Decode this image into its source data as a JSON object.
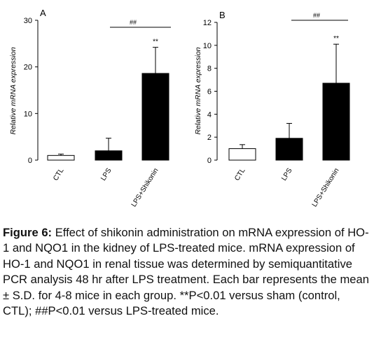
{
  "chart_data": [
    {
      "type": "bar",
      "panel_label": "A",
      "ylabel": "Relative mRNA expression",
      "ylim": [
        0,
        30
      ],
      "yticks": [
        "0",
        "10",
        "20",
        "30"
      ],
      "categories": [
        "CTL",
        "LPS",
        "LPS+Shikonin"
      ],
      "values": [
        1.0,
        2.0,
        18.6
      ],
      "errors": [
        0.3,
        2.7,
        5.6
      ],
      "bar_fills": [
        "#ffffff",
        "#000000",
        "#000000"
      ],
      "annotations": {
        "significance_vs_ctl": "**",
        "significance_vs_lps": "##"
      }
    },
    {
      "type": "bar",
      "panel_label": "B",
      "ylabel": "Relative mRNA expression",
      "ylim": [
        0,
        12
      ],
      "yticks": [
        "0",
        "2",
        "4",
        "6",
        "8",
        "10",
        "12"
      ],
      "categories": [
        "CTL",
        "LPS",
        "LPS+Shikonin"
      ],
      "values": [
        1.0,
        1.9,
        6.7
      ],
      "errors": [
        0.35,
        1.3,
        3.4
      ],
      "bar_fills": [
        "#ffffff",
        "#000000",
        "#000000"
      ],
      "annotations": {
        "significance_vs_ctl": "**",
        "significance_vs_lps": "##"
      }
    }
  ],
  "caption": {
    "label": "Figure 6:",
    "text": " Effect of shikonin administration on mRNA expression of HO-1 and NQO1 in the kidney of LPS-treated mice. mRNA expression of HO-1 and NQO1 in renal tissue was determined by semiquantitative PCR analysis 48 hr after LPS treatment. Each bar represents the mean ± S.D. for 4-8 mice in each group. **P<0.01 versus sham (control, CTL); ##P<0.01 versus LPS-treated mice."
  }
}
